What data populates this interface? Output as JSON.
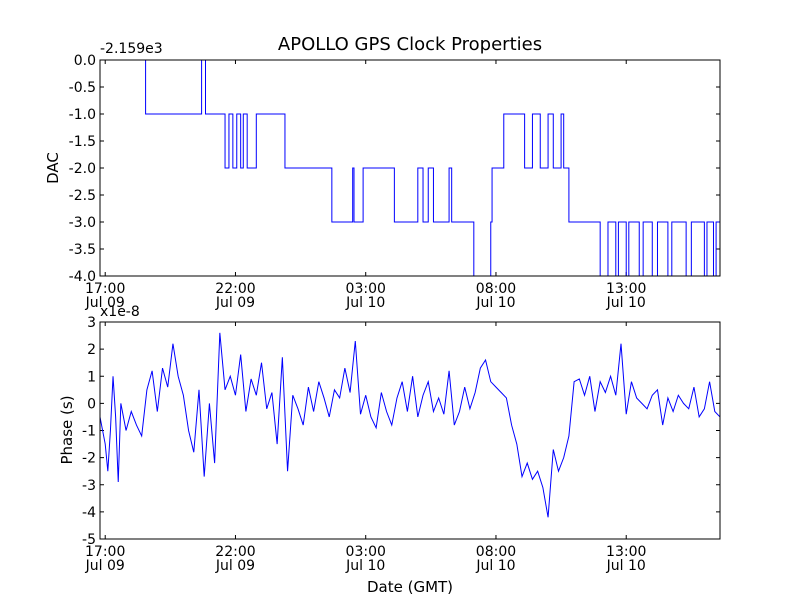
{
  "chart_data": [
    {
      "type": "line",
      "title": "APOLLO GPS Clock Properties",
      "ylabel": "DAC",
      "xlabel": "",
      "offset_label": "-2.159e3",
      "x_unit": "hours since Jul 09 17:00 GMT",
      "xlim": [
        -0.2,
        23.6
      ],
      "ylim": [
        -4.0,
        0.0
      ],
      "yticks": [
        0.0,
        -0.5,
        -1.0,
        -1.5,
        -2.0,
        -2.5,
        -3.0,
        -3.5,
        -4.0
      ],
      "ytick_labels": [
        "0.0",
        "-0.5",
        "-1.0",
        "-1.5",
        "-2.0",
        "-2.5",
        "-3.0",
        "-3.5",
        "-4.0"
      ],
      "xticks": [
        0,
        5,
        10,
        15,
        20
      ],
      "xtick_labels": [
        [
          "17:00",
          "Jul 09"
        ],
        [
          "22:00",
          "Jul 09"
        ],
        [
          "03:00",
          "Jul 10"
        ],
        [
          "08:00",
          "Jul 10"
        ],
        [
          "13:00",
          "Jul 10"
        ]
      ],
      "series": [
        {
          "name": "DAC",
          "x": [
            -0.2,
            1.55,
            1.55,
            3.7,
            3.7,
            3.85,
            3.85,
            4.6,
            4.6,
            4.75,
            4.75,
            4.9,
            4.9,
            5.05,
            5.05,
            5.2,
            5.2,
            5.3,
            5.3,
            5.45,
            5.45,
            5.8,
            5.8,
            6.9,
            6.9,
            7.3,
            7.3,
            8.7,
            8.7,
            9.5,
            9.5,
            9.55,
            9.55,
            9.9,
            9.9,
            11.1,
            11.1,
            12.0,
            12.0,
            12.2,
            12.2,
            12.4,
            12.4,
            12.6,
            12.6,
            13.2,
            13.2,
            13.3,
            13.3,
            14.15,
            14.15,
            14.8,
            14.8,
            14.85,
            14.85,
            15.3,
            15.3,
            16.1,
            16.1,
            16.4,
            16.4,
            16.7,
            16.7,
            17.0,
            17.0,
            17.2,
            17.2,
            17.5,
            17.5,
            17.6,
            17.6,
            17.8,
            17.8,
            19.0,
            19.0,
            19.3,
            19.3,
            19.6,
            19.6,
            19.7,
            19.7,
            20.0,
            20.0,
            20.1,
            20.1,
            20.5,
            20.5,
            20.65,
            20.65,
            21.0,
            21.0,
            21.2,
            21.2,
            21.6,
            21.6,
            21.75,
            21.75,
            22.3,
            22.3,
            22.5,
            22.5,
            23.0,
            23.0,
            23.1,
            23.1,
            23.35,
            23.35,
            23.45,
            23.45,
            23.6
          ],
          "y": [
            0.0,
            0.0,
            -1.0,
            -1.0,
            0.0,
            0.0,
            -1.0,
            -1.0,
            -2.0,
            -2.0,
            -1.0,
            -1.0,
            -2.0,
            -2.0,
            -1.0,
            -1.0,
            -2.0,
            -2.0,
            -1.0,
            -1.0,
            -2.0,
            -2.0,
            -1.0,
            -1.0,
            -2.0,
            -2.0,
            -2.0,
            -2.0,
            -3.0,
            -3.0,
            -2.0,
            -2.0,
            -3.0,
            -3.0,
            -2.0,
            -2.0,
            -3.0,
            -3.0,
            -2.0,
            -2.0,
            -3.0,
            -3.0,
            -2.0,
            -2.0,
            -3.0,
            -3.0,
            -2.0,
            -2.0,
            -3.0,
            -3.0,
            -4.0,
            -4.0,
            -3.0,
            -3.0,
            -2.0,
            -2.0,
            -1.0,
            -1.0,
            -2.0,
            -2.0,
            -1.0,
            -1.0,
            -2.0,
            -2.0,
            -1.0,
            -1.0,
            -2.0,
            -2.0,
            -1.0,
            -1.0,
            -2.0,
            -2.0,
            -3.0,
            -3.0,
            -4.0,
            -4.0,
            -3.0,
            -3.0,
            -4.0,
            -4.0,
            -3.0,
            -3.0,
            -4.0,
            -4.0,
            -3.0,
            -3.0,
            -4.0,
            -4.0,
            -3.0,
            -3.0,
            -4.0,
            -4.0,
            -3.0,
            -3.0,
            -4.0,
            -4.0,
            -3.0,
            -3.0,
            -4.0,
            -4.0,
            -3.0,
            -3.0,
            -4.0,
            -4.0,
            -3.0,
            -3.0,
            -4.0,
            -4.0,
            -3.0,
            -3.0
          ]
        }
      ]
    },
    {
      "type": "line",
      "ylabel": "Phase (s)",
      "xlabel": "Date (GMT)",
      "offset_label": "x1e-8",
      "x_unit": "hours since Jul 09 17:00 GMT",
      "xlim": [
        -0.2,
        23.6
      ],
      "ylim": [
        -5,
        3
      ],
      "yticks": [
        3,
        2,
        1,
        0,
        -1,
        -2,
        -3,
        -4,
        -5
      ],
      "ytick_labels": [
        "3",
        "2",
        "1",
        "0",
        "-1",
        "-2",
        "-3",
        "-4",
        "-5"
      ],
      "xticks": [
        0,
        5,
        10,
        15,
        20
      ],
      "xtick_labels": [
        [
          "17:00",
          "Jul 09"
        ],
        [
          "22:00",
          "Jul 09"
        ],
        [
          "03:00",
          "Jul 10"
        ],
        [
          "08:00",
          "Jul 10"
        ],
        [
          "13:00",
          "Jul 10"
        ]
      ],
      "series": [
        {
          "name": "Phase",
          "x": [
            -0.2,
            0.0,
            0.1,
            0.2,
            0.3,
            0.4,
            0.5,
            0.6,
            0.8,
            1.0,
            1.2,
            1.4,
            1.6,
            1.8,
            2.0,
            2.2,
            2.4,
            2.6,
            2.8,
            3.0,
            3.2,
            3.4,
            3.6,
            3.8,
            4.0,
            4.2,
            4.4,
            4.6,
            4.8,
            5.0,
            5.2,
            5.4,
            5.6,
            5.8,
            6.0,
            6.2,
            6.4,
            6.6,
            6.8,
            7.0,
            7.2,
            7.4,
            7.6,
            7.8,
            8.0,
            8.2,
            8.4,
            8.6,
            8.8,
            9.0,
            9.2,
            9.4,
            9.6,
            9.8,
            10.0,
            10.2,
            10.4,
            10.6,
            10.8,
            11.0,
            11.2,
            11.4,
            11.6,
            11.8,
            12.0,
            12.2,
            12.4,
            12.6,
            12.8,
            13.0,
            13.2,
            13.4,
            13.6,
            13.8,
            14.0,
            14.2,
            14.4,
            14.6,
            14.8,
            15.0,
            15.2,
            15.4,
            15.6,
            15.8,
            16.0,
            16.2,
            16.4,
            16.6,
            16.8,
            17.0,
            17.2,
            17.4,
            17.6,
            17.8,
            18.0,
            18.2,
            18.4,
            18.6,
            18.8,
            19.0,
            19.2,
            19.4,
            19.6,
            19.8,
            20.0,
            20.2,
            20.4,
            20.6,
            20.8,
            21.0,
            21.2,
            21.4,
            21.6,
            21.8,
            22.0,
            22.2,
            22.4,
            22.6,
            22.8,
            23.0,
            23.2,
            23.4,
            23.6
          ],
          "y": [
            -0.5,
            -1.5,
            -2.5,
            -1.0,
            1.0,
            -0.5,
            -2.9,
            0.0,
            -1.0,
            -0.3,
            -0.8,
            -1.2,
            0.5,
            1.2,
            -0.3,
            1.3,
            0.6,
            2.2,
            1.0,
            0.3,
            -1.0,
            -1.8,
            0.5,
            -2.7,
            0.0,
            -2.2,
            2.6,
            0.5,
            1.0,
            0.3,
            1.8,
            -0.3,
            0.9,
            0.3,
            1.5,
            -0.2,
            0.4,
            -1.5,
            1.7,
            -2.5,
            0.3,
            -0.2,
            -0.8,
            0.6,
            -0.3,
            0.8,
            0.2,
            -0.5,
            0.5,
            0.2,
            1.3,
            0.4,
            2.3,
            -0.4,
            0.3,
            -0.5,
            -0.9,
            0.4,
            -0.3,
            -0.8,
            0.2,
            0.8,
            -0.3,
            1.0,
            -0.5,
            0.3,
            0.8,
            -0.3,
            0.2,
            -0.4,
            1.2,
            -0.8,
            -0.3,
            0.6,
            -0.2,
            0.4,
            1.3,
            1.6,
            0.8,
            0.6,
            0.4,
            0.2,
            -0.8,
            -1.5,
            -2.7,
            -2.2,
            -2.8,
            -2.5,
            -3.1,
            -4.2,
            -1.7,
            -2.5,
            -2.0,
            -1.2,
            0.8,
            0.9,
            0.3,
            1.0,
            -0.3,
            0.8,
            0.4,
            1.0,
            0.3,
            2.2,
            -0.4,
            0.8,
            0.2,
            0.0,
            -0.2,
            0.3,
            0.5,
            -0.8,
            0.2,
            -0.3,
            0.3,
            0.0,
            -0.2,
            0.6,
            -0.5,
            -0.2,
            0.8,
            -0.3,
            -0.5
          ]
        }
      ]
    }
  ]
}
